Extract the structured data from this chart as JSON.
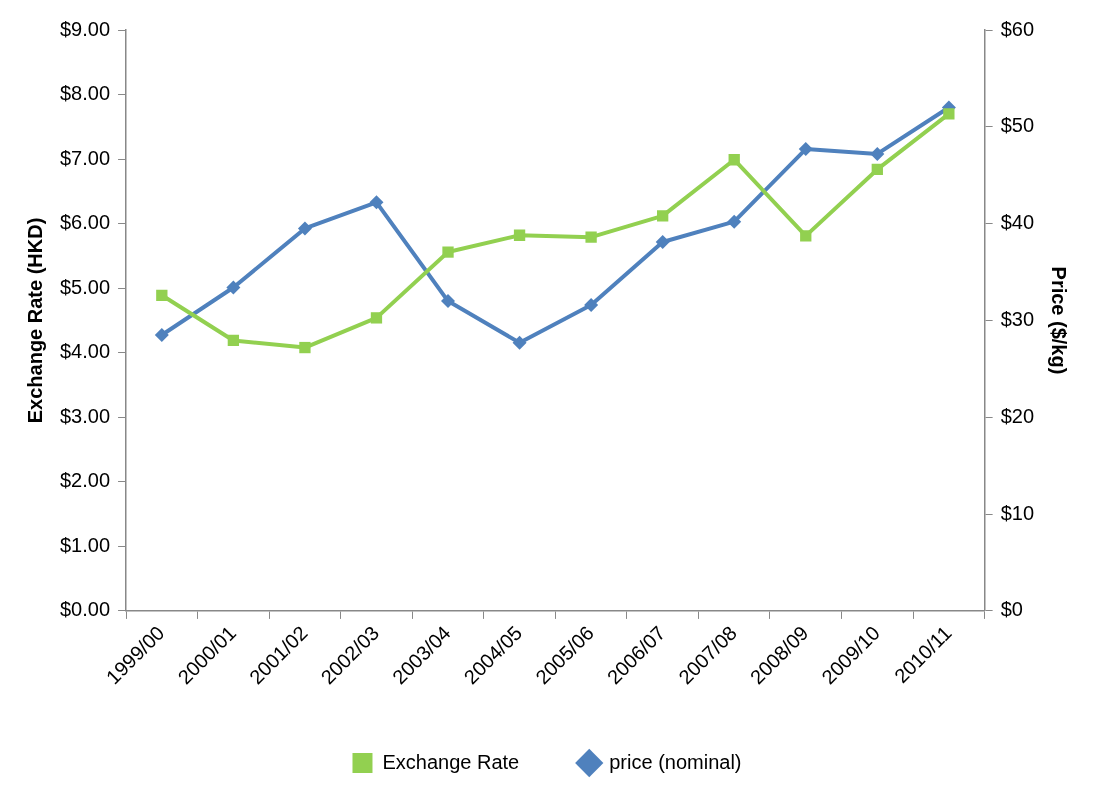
{
  "chart_data": {
    "type": "line",
    "ylabel": "Exchange Rate (HKD)",
    "y2label": "Price ($/kg)",
    "categories": [
      "1999/00",
      "2000/01",
      "2001/02",
      "2002/03",
      "2003/04",
      "2004/05",
      "2005/06",
      "2006/07",
      "2007/08",
      "2008/09",
      "2009/10",
      "2010/11"
    ],
    "series": [
      {
        "name": "Exchange Rate",
        "color": "#92d050",
        "marker": "square",
        "axis": "y",
        "values": [
          4.89,
          4.19,
          4.08,
          4.54,
          5.56,
          5.82,
          5.79,
          6.12,
          6.99,
          5.81,
          6.84,
          7.7
        ]
      },
      {
        "name": "price (nominal)",
        "color": "#4f81bd",
        "marker": "diamond",
        "axis": "y2",
        "values": [
          28.5,
          33.4,
          39.5,
          42.2,
          32.0,
          27.7,
          31.6,
          38.1,
          40.2,
          47.7,
          47.2,
          52.0
        ]
      }
    ],
    "ylim": [
      0,
      9
    ],
    "yticks": [
      {
        "value": 0,
        "label": "$0.00"
      },
      {
        "value": 1,
        "label": "$1.00"
      },
      {
        "value": 2,
        "label": "$2.00"
      },
      {
        "value": 3,
        "label": "$3.00"
      },
      {
        "value": 4,
        "label": "$4.00"
      },
      {
        "value": 5,
        "label": "$5.00"
      },
      {
        "value": 6,
        "label": "$6.00"
      },
      {
        "value": 7,
        "label": "$7.00"
      },
      {
        "value": 8,
        "label": "$8.00"
      },
      {
        "value": 9,
        "label": "$9.00"
      }
    ],
    "y2lim": [
      0,
      60
    ],
    "y2ticks": [
      {
        "value": 0,
        "label": "$0"
      },
      {
        "value": 10,
        "label": "$10"
      },
      {
        "value": 20,
        "label": "$20"
      },
      {
        "value": 30,
        "label": "$30"
      },
      {
        "value": 40,
        "label": "$40"
      },
      {
        "value": 50,
        "label": "$50"
      },
      {
        "value": 60,
        "label": "$60"
      }
    ],
    "legend": "bottom",
    "grid": false,
    "line_style": "solid"
  }
}
